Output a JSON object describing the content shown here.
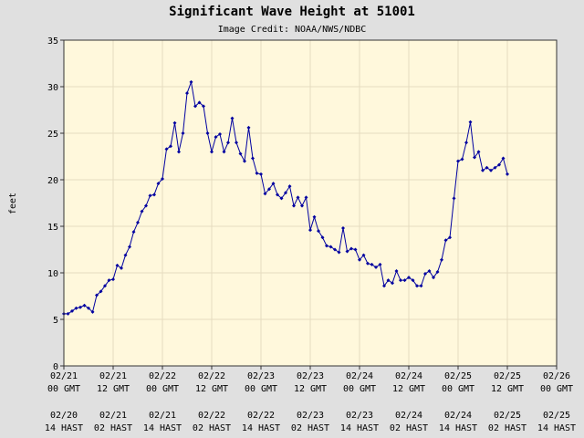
{
  "chart_data": {
    "type": "line",
    "title": "Significant Wave Height at 51001",
    "subtitle": "Image Credit: NOAA/NWS/NDBC",
    "y_label": "feet",
    "ylim": [
      0,
      35
    ],
    "yticks": [
      0,
      5,
      10,
      15,
      20,
      25,
      30,
      35
    ],
    "grid": true,
    "xlim": [
      "02/21 00",
      "02/26 00"
    ],
    "xticks": [
      {
        "value": "02/21 00",
        "label": [
          "02/21",
          "00 GMT"
        ],
        "local_label": [
          "02/20",
          "14 HAST"
        ]
      },
      {
        "value": "02/21 12",
        "label": [
          "02/21",
          "12 GMT"
        ],
        "local_label": [
          "02/21",
          "02 HAST"
        ]
      },
      {
        "value": "02/22 00",
        "label": [
          "02/22",
          "00 GMT"
        ],
        "local_label": [
          "02/21",
          "14 HAST"
        ]
      },
      {
        "value": "02/22 12",
        "label": [
          "02/22",
          "12 GMT"
        ],
        "local_label": [
          "02/22",
          "02 HAST"
        ]
      },
      {
        "value": "02/23 00",
        "label": [
          "02/23",
          "00 GMT"
        ],
        "local_label": [
          "02/22",
          "14 HAST"
        ]
      },
      {
        "value": "02/23 12",
        "label": [
          "02/23",
          "12 GMT"
        ],
        "local_label": [
          "02/23",
          "02 HAST"
        ]
      },
      {
        "value": "02/24 00",
        "label": [
          "02/24",
          "00 GMT"
        ],
        "local_label": [
          "02/23",
          "14 HAST"
        ]
      },
      {
        "value": "02/24 12",
        "label": [
          "02/24",
          "12 GMT"
        ],
        "local_label": [
          "02/24",
          "02 HAST"
        ]
      },
      {
        "value": "02/25 00",
        "label": [
          "02/25",
          "00 GMT"
        ],
        "local_label": [
          "02/24",
          "14 HAST"
        ]
      },
      {
        "value": "02/25 12",
        "label": [
          "02/25",
          "12 GMT"
        ],
        "local_label": [
          "02/25",
          "02 HAST"
        ]
      },
      {
        "value": "02/26 00",
        "label": [
          "02/26",
          "00 GMT"
        ],
        "local_label": [
          "02/25",
          "14 HAST"
        ]
      }
    ],
    "x": [
      "02/21 00",
      "02/21 01",
      "02/21 02",
      "02/21 03",
      "02/21 04",
      "02/21 05",
      "02/21 06",
      "02/21 07",
      "02/21 08",
      "02/21 09",
      "02/21 10",
      "02/21 11",
      "02/21 12",
      "02/21 13",
      "02/21 14",
      "02/21 15",
      "02/21 16",
      "02/21 17",
      "02/21 18",
      "02/21 19",
      "02/21 20",
      "02/21 21",
      "02/21 22",
      "02/21 23",
      "02/22 00",
      "02/22 01",
      "02/22 02",
      "02/22 03",
      "02/22 04",
      "02/22 05",
      "02/22 06",
      "02/22 07",
      "02/22 08",
      "02/22 09",
      "02/22 10",
      "02/22 11",
      "02/22 12",
      "02/22 13",
      "02/22 14",
      "02/22 15",
      "02/22 16",
      "02/22 17",
      "02/22 18",
      "02/22 19",
      "02/22 20",
      "02/22 21",
      "02/22 22",
      "02/22 23",
      "02/23 00",
      "02/23 01",
      "02/23 02",
      "02/23 03",
      "02/23 04",
      "02/23 05",
      "02/23 06",
      "02/23 07",
      "02/23 08",
      "02/23 09",
      "02/23 10",
      "02/23 11",
      "02/23 12",
      "02/23 13",
      "02/23 14",
      "02/23 15",
      "02/23 16",
      "02/23 17",
      "02/23 18",
      "02/23 19",
      "02/23 20",
      "02/23 21",
      "02/23 22",
      "02/23 23",
      "02/24 00",
      "02/24 01",
      "02/24 02",
      "02/24 03",
      "02/24 04",
      "02/24 05",
      "02/24 06",
      "02/24 07",
      "02/24 08",
      "02/24 09",
      "02/24 10",
      "02/24 11",
      "02/24 12",
      "02/24 13",
      "02/24 14",
      "02/24 15",
      "02/24 16",
      "02/24 17",
      "02/24 18",
      "02/24 19",
      "02/24 20",
      "02/24 21",
      "02/24 22",
      "02/24 23",
      "02/25 00",
      "02/25 01",
      "02/25 02",
      "02/25 03",
      "02/25 04",
      "02/25 05",
      "02/25 06",
      "02/25 07",
      "02/25 08",
      "02/25 09",
      "02/25 10",
      "02/25 11",
      "02/25 12"
    ],
    "series": [
      {
        "color": "#0000a0",
        "values": [
          5.6,
          5.6,
          5.9,
          6.2,
          6.3,
          6.5,
          6.2,
          5.8,
          7.6,
          8.0,
          8.6,
          9.2,
          9.3,
          10.8,
          10.5,
          11.9,
          12.8,
          14.4,
          15.4,
          16.6,
          17.2,
          18.3,
          18.4,
          19.6,
          20.1,
          23.3,
          23.6,
          26.1,
          23.0,
          25.0,
          29.3,
          30.5,
          27.9,
          28.3,
          27.9,
          25.0,
          23.0,
          24.6,
          24.9,
          23.0,
          24.0,
          26.6,
          24.0,
          22.8,
          22.0,
          25.6,
          22.3,
          20.7,
          20.6,
          18.5,
          19.0,
          19.6,
          18.4,
          18.0,
          18.6,
          19.3,
          17.2,
          18.1,
          17.2,
          18.1,
          14.6,
          16.0,
          14.5,
          13.8,
          12.9,
          12.8,
          12.5,
          12.2,
          14.8,
          12.3,
          12.6,
          12.5,
          11.4,
          11.9,
          11.0,
          10.9,
          10.6,
          10.9,
          8.6,
          9.2,
          8.9,
          10.2,
          9.2,
          9.2,
          9.5,
          9.2,
          8.6,
          8.6,
          9.9,
          10.2,
          9.5,
          10.1,
          11.4,
          13.5,
          13.8,
          18.0,
          22.0,
          22.2,
          24.0,
          26.2,
          22.4,
          23.0,
          21.0,
          21.3,
          21.0,
          21.3,
          21.6,
          22.3,
          20.6
        ]
      }
    ]
  }
}
